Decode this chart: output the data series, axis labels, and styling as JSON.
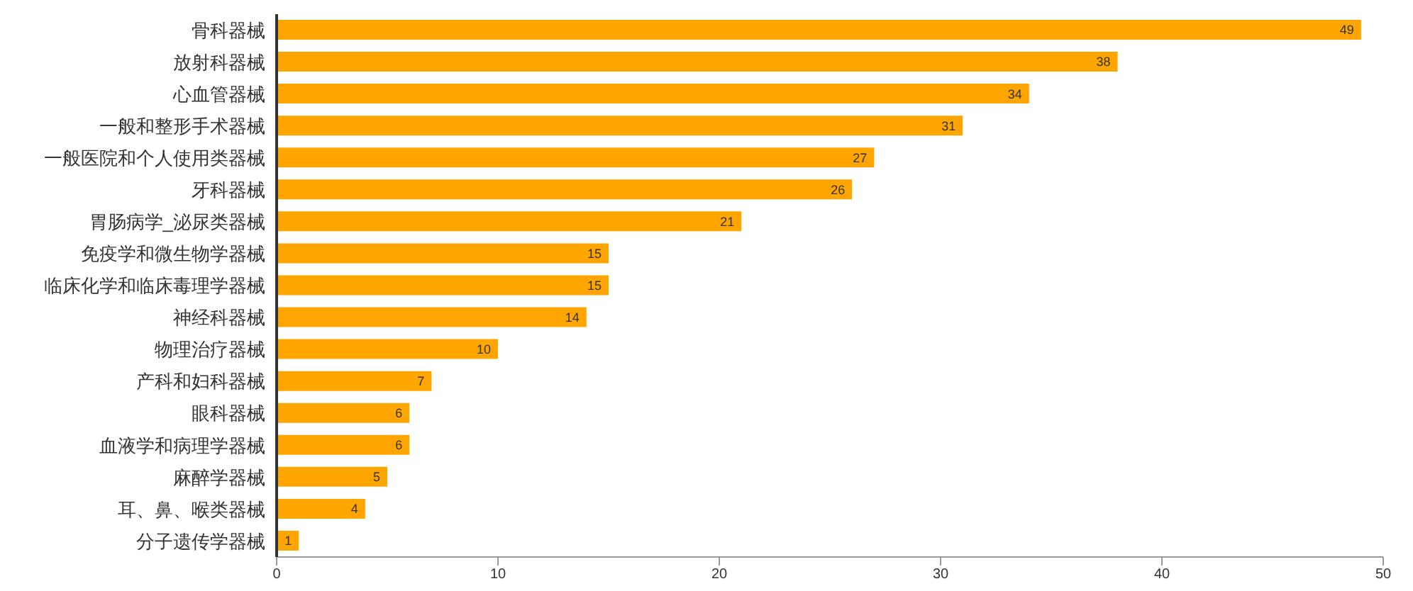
{
  "chart_data": {
    "type": "bar",
    "orientation": "horizontal",
    "categories": [
      "骨科器械",
      "放射科器械",
      "心血管器械",
      "一般和整形手术器械",
      "一般医院和个人使用类器械",
      "牙科器械",
      "胃肠病学_泌尿类器械",
      "免疫学和微生物学器械",
      "临床化学和临床毒理学器械",
      "神经科器械",
      "物理治疗器械",
      "产科和妇科器械",
      "眼科器械",
      "血液学和病理学器械",
      "麻醉学器械",
      "耳、鼻、喉类器械",
      "分子遗传学器械"
    ],
    "values": [
      49,
      38,
      34,
      31,
      27,
      26,
      21,
      15,
      15,
      14,
      10,
      7,
      6,
      6,
      5,
      4,
      1
    ],
    "color": "#ffa500",
    "xlim": [
      0,
      50
    ],
    "xticks": [
      0,
      10,
      20,
      30,
      40,
      50
    ],
    "grid": false,
    "data_labels": true
  }
}
